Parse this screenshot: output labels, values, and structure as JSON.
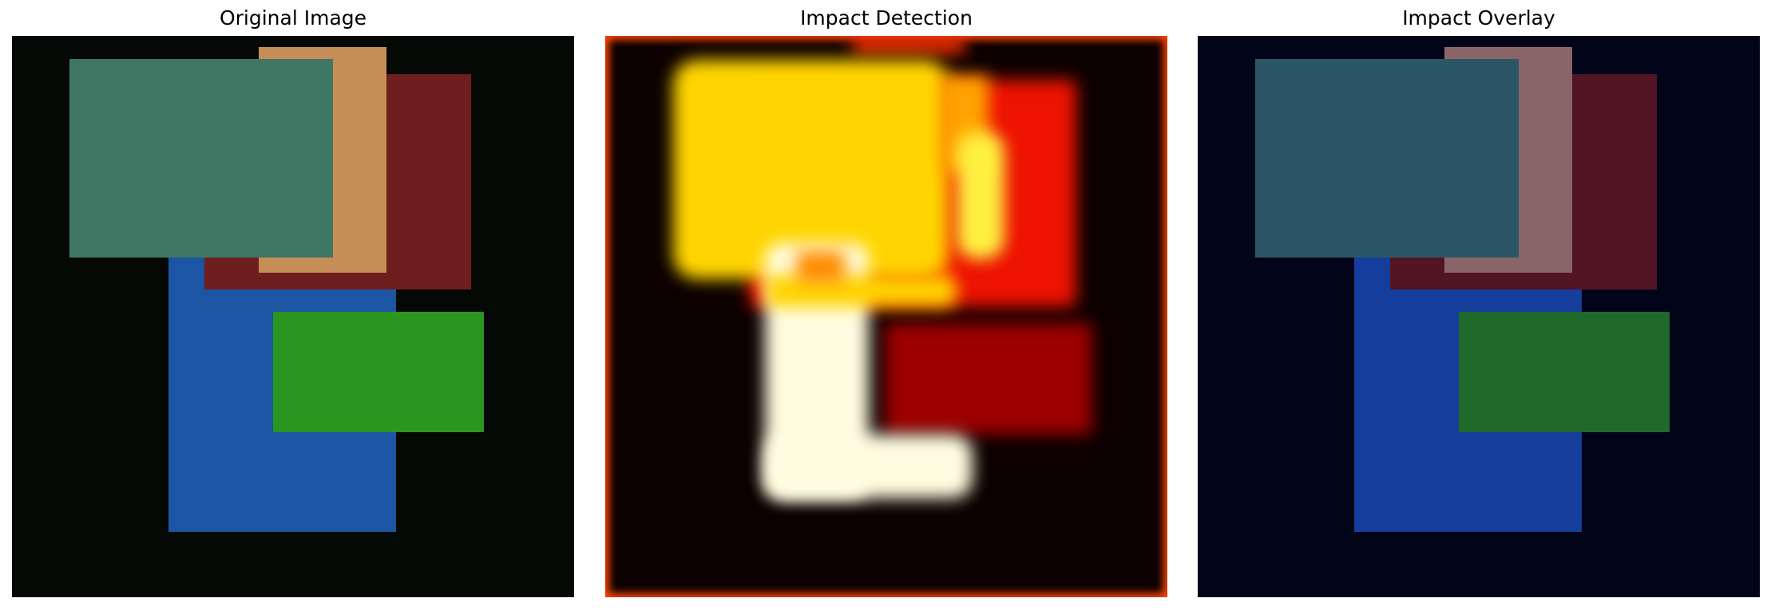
{
  "panels": [
    {
      "title": "Original Image"
    },
    {
      "title": "Impact Detection"
    },
    {
      "title": "Impact Overlay"
    }
  ],
  "colors": {
    "original_background": "#050906",
    "original_blue": "#1c55a4",
    "original_red": "#6e1e1f",
    "original_orange": "#c58e59",
    "original_teal": "#3f7764",
    "original_green": "#2a951f",
    "heatmap_background": "#0c0000",
    "heatmap_hot": "#fffde0",
    "heatmap_warm": "#ffd500",
    "heatmap_red": "#ee1200",
    "heatmap_dark_red": "#9c0000",
    "overlay_background": "#02041a"
  }
}
